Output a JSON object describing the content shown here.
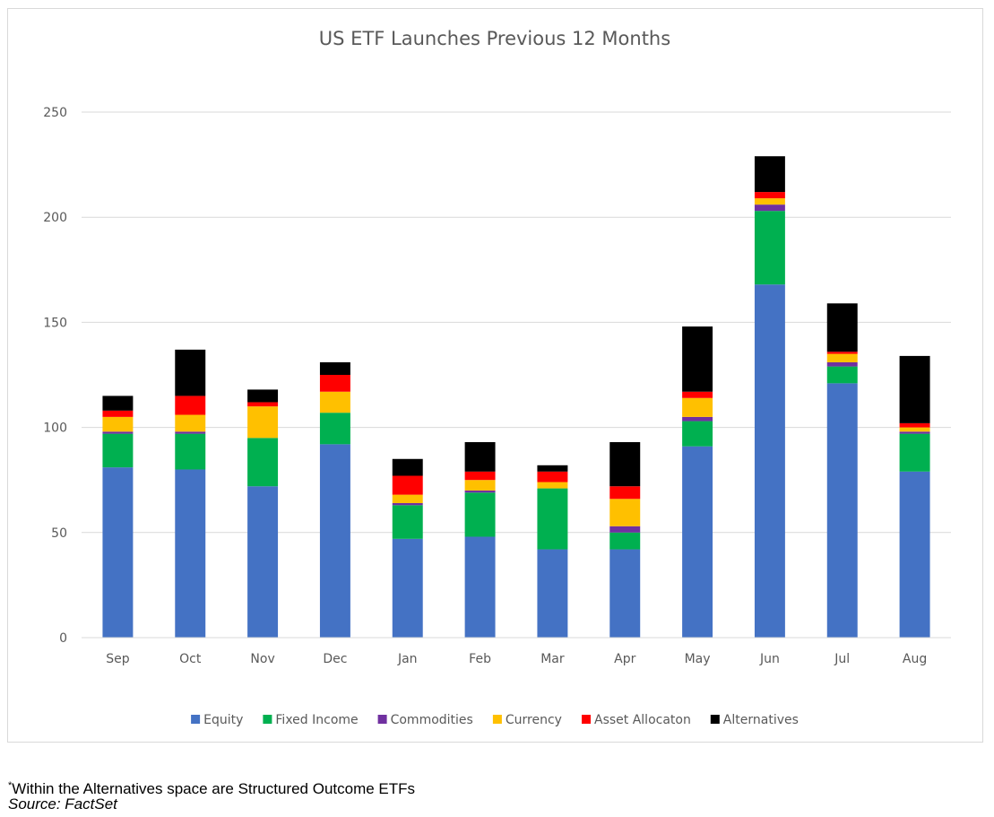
{
  "chart_data": {
    "type": "bar",
    "stacked": true,
    "title": "US ETF Launches Previous 12 Months",
    "xlabel": "",
    "ylabel": "",
    "ylim": [
      0,
      250
    ],
    "yticks": [
      0,
      50,
      100,
      150,
      200,
      250
    ],
    "grid": true,
    "legend_position": "bottom",
    "categories": [
      "Sep",
      "Oct",
      "Nov",
      "Dec",
      "Jan",
      "Feb",
      "Mar",
      "Apr",
      "May",
      "Jun",
      "Jul",
      "Aug"
    ],
    "series": [
      {
        "name": "Equity",
        "color": "#4472c4",
        "values": [
          81,
          80,
          72,
          92,
          47,
          48,
          42,
          42,
          91,
          168,
          121,
          79
        ]
      },
      {
        "name": "Fixed Income",
        "color": "#00b050",
        "values": [
          16,
          17,
          23,
          15,
          16,
          21,
          29,
          8,
          12,
          35,
          8,
          18
        ]
      },
      {
        "name": "Commodities",
        "color": "#7030a0",
        "values": [
          1,
          1,
          0,
          0,
          1,
          1,
          0,
          3,
          2,
          3,
          2,
          1
        ]
      },
      {
        "name": "Currency",
        "color": "#ffc000",
        "values": [
          7,
          8,
          15,
          10,
          4,
          5,
          3,
          13,
          9,
          3,
          4,
          2
        ]
      },
      {
        "name": "Asset Allocaton",
        "color": "#ff0000",
        "values": [
          3,
          9,
          2,
          8,
          9,
          4,
          5,
          6,
          3,
          3,
          1,
          2
        ]
      },
      {
        "name": "Alternatives",
        "color": "#000000",
        "values": [
          7,
          22,
          6,
          6,
          8,
          14,
          3,
          21,
          31,
          17,
          23,
          32
        ]
      }
    ]
  },
  "footnotes": {
    "asterisk": "*",
    "note": "Within the Alternatives space are Structured Outcome ETFs",
    "source": "Source: FactSet"
  }
}
